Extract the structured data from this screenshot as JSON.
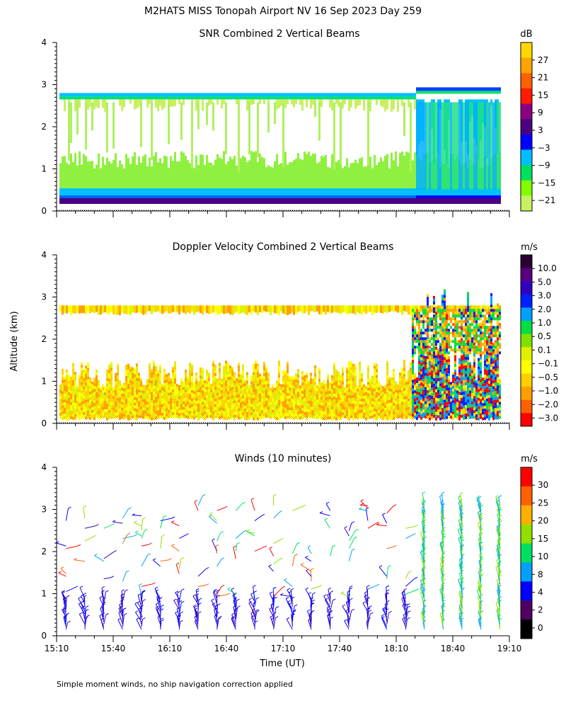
{
  "figure": {
    "title": "M2HATS MISS Tonopah Airport NV  16 Sep 2023 Day 259",
    "ylabel_shared": "Altitude (km)",
    "xlabel": "Time (UT)",
    "footnote": "Simple moment winds, no ship navigation correction applied"
  },
  "panels": [
    {
      "key": "snr",
      "title": "SNR Combined 2 Vertical Beams",
      "unit": "dB",
      "colorbar_labels": [
        "27",
        "21",
        "15",
        "9",
        "3",
        "−3",
        "−9",
        "−15",
        "−21"
      ],
      "colorbar_colors": [
        "#ffd700",
        "#ffa500",
        "#ff6000",
        "#ff1a00",
        "#8b0080",
        "#4b0082",
        "#0000ff",
        "#00bfff",
        "#00e060",
        "#80ff00",
        "#c8f060"
      ]
    },
    {
      "key": "doppler",
      "title": "Doppler Velocity Combined 2 Vertical Beams",
      "unit": "m/s",
      "colorbar_labels": [
        "10.0",
        "5.0",
        "3.0",
        "2.0",
        "1.0",
        "0.5",
        "0.1",
        "−0.1",
        "−0.5",
        "−1.0",
        "−2.0",
        "−3.0"
      ],
      "colorbar_colors": [
        "#2a0030",
        "#5a0080",
        "#3000c0",
        "#0020ff",
        "#00a0ff",
        "#00e040",
        "#80e000",
        "#e0f000",
        "#ffff00",
        "#ffd000",
        "#ffa000",
        "#ff6000",
        "#ff0000"
      ]
    },
    {
      "key": "winds",
      "title": "Winds (10 minutes)",
      "unit": "m/s",
      "colorbar_labels": [
        "30",
        "25",
        "20",
        "15",
        "10",
        "8",
        "4",
        "2",
        "0"
      ],
      "colorbar_colors": [
        "#ff0000",
        "#ff6000",
        "#ffb000",
        "#90e000",
        "#00e060",
        "#00a0ff",
        "#0000ff",
        "#500060",
        "#000000"
      ]
    }
  ],
  "chart_data": [
    {
      "type": "heatmap",
      "title": "SNR Combined 2 Vertical Beams",
      "unit": "dB",
      "xlabel": "Time (UT)",
      "ylabel": "Altitude (km)",
      "x_ticks": [
        "15:10",
        "15:40",
        "16:10",
        "16:40",
        "17:10",
        "17:40",
        "18:10",
        "18:40",
        "19:10"
      ],
      "ylim": [
        0,
        4
      ],
      "y_ticks": [
        "0",
        "1",
        "2",
        "3",
        "4"
      ],
      "top_of_signal_km": 2.75,
      "notes": "Weak echoes (-21 to -15 dB) fill a layer up to ~2.75 km; strong echoes (3 to 15 dB) below 0.5 km; after ~18:20 an enhanced turbulent layer up to ~2.9 km."
    },
    {
      "type": "heatmap",
      "title": "Doppler Velocity Combined 2 Vertical Beams",
      "unit": "m/s",
      "xlabel": "Time (UT)",
      "ylabel": "Altitude (km)",
      "x_ticks": [
        "15:10",
        "15:40",
        "16:10",
        "16:40",
        "17:10",
        "17:40",
        "18:10",
        "18:40",
        "19:10"
      ],
      "ylim": [
        0,
        4
      ],
      "y_ticks": [
        "0",
        "1",
        "2",
        "3",
        "4"
      ],
      "notes": "Mostly -0.5 to -0.1 m/s (yellow/orange) below 1 km and near 2.75 km; after ~18:20 mixed updrafts (0.5 to 3 m/s) and downdrafts (-1 to -3 m/s)."
    },
    {
      "type": "scatter",
      "title": "Winds (10 minutes)",
      "unit": "m/s",
      "xlabel": "Time (UT)",
      "ylabel": "Altitude (km)",
      "x_ticks": [
        "15:10",
        "15:40",
        "16:10",
        "16:40",
        "17:10",
        "17:40",
        "18:10",
        "18:40",
        "19:10"
      ],
      "ylim": [
        0,
        4
      ],
      "y_ticks": [
        "0",
        "1",
        "2",
        "3",
        "4"
      ],
      "profile_times_min": [
        5,
        15,
        25,
        35,
        45,
        55,
        65,
        75,
        85,
        95,
        105,
        115,
        125,
        135,
        145,
        155,
        165,
        175,
        185,
        195,
        205,
        215,
        225,
        235
      ],
      "notes": "Wind barbs at 10-minute intervals; low-level winds 2-8 m/s (blue/purple) below 1 km; 10-20 m/s near 2.5-3 km; after 18:20 strong winds 8-20 m/s through the full column."
    }
  ]
}
